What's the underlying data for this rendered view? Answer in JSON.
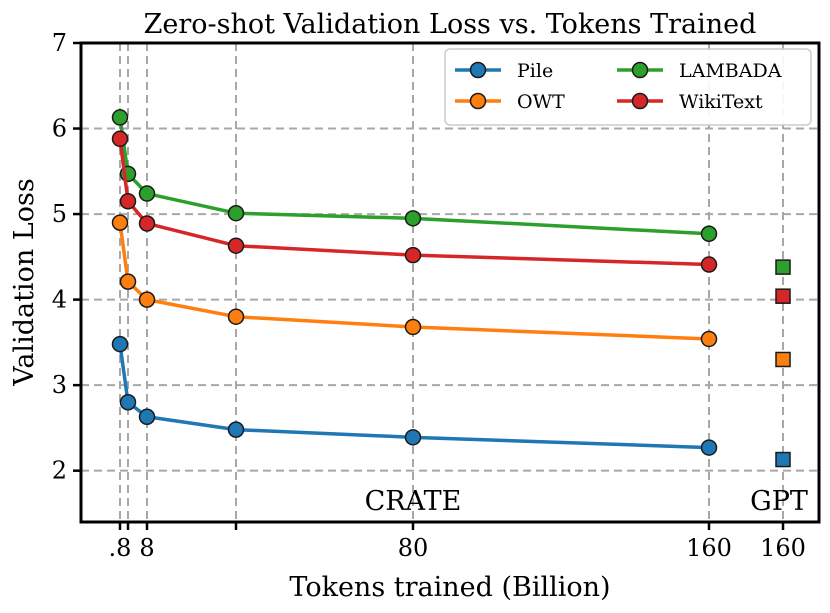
{
  "chart_data": {
    "type": "line",
    "title": "Zero-shot Validation Loss vs. Tokens Trained",
    "xlabel": "Tokens trained (Billion)",
    "ylabel": "Validation Loss",
    "ylim": [
      1.4,
      7.0
    ],
    "yticks": [
      2,
      3,
      4,
      5,
      6,
      7
    ],
    "x_tick_labels": [
      ".8",
      "8",
      "80",
      "160",
      "160"
    ],
    "x": [
      0.8,
      2.4,
      8,
      40,
      80,
      160
    ],
    "series": [
      {
        "name": "Pile",
        "color": "#1f77b4",
        "values": [
          3.48,
          2.8,
          2.63,
          2.48,
          2.39,
          2.27
        ]
      },
      {
        "name": "OWT",
        "color": "#ff7f0e",
        "values": [
          4.9,
          4.21,
          4.0,
          3.8,
          3.68,
          3.54
        ]
      },
      {
        "name": "LAMBADA",
        "color": "#2ca02c",
        "values": [
          6.13,
          5.47,
          5.24,
          5.01,
          4.95,
          4.77
        ]
      },
      {
        "name": "WikiText",
        "color": "#d62728",
        "values": [
          5.88,
          5.15,
          4.89,
          4.63,
          4.52,
          4.41
        ]
      }
    ],
    "gpt_reference": {
      "label": "GPT",
      "x_label": "160",
      "values": {
        "Pile": 2.13,
        "OWT": 3.3,
        "LAMBADA": 4.38,
        "WikiText": 4.04
      }
    },
    "annotations": [
      "CRATE",
      "GPT"
    ],
    "legend": {
      "location": "top-right",
      "columns": 2,
      "order": [
        "Pile",
        "OWT",
        "LAMBADA",
        "WikiText"
      ]
    },
    "grid": true
  }
}
